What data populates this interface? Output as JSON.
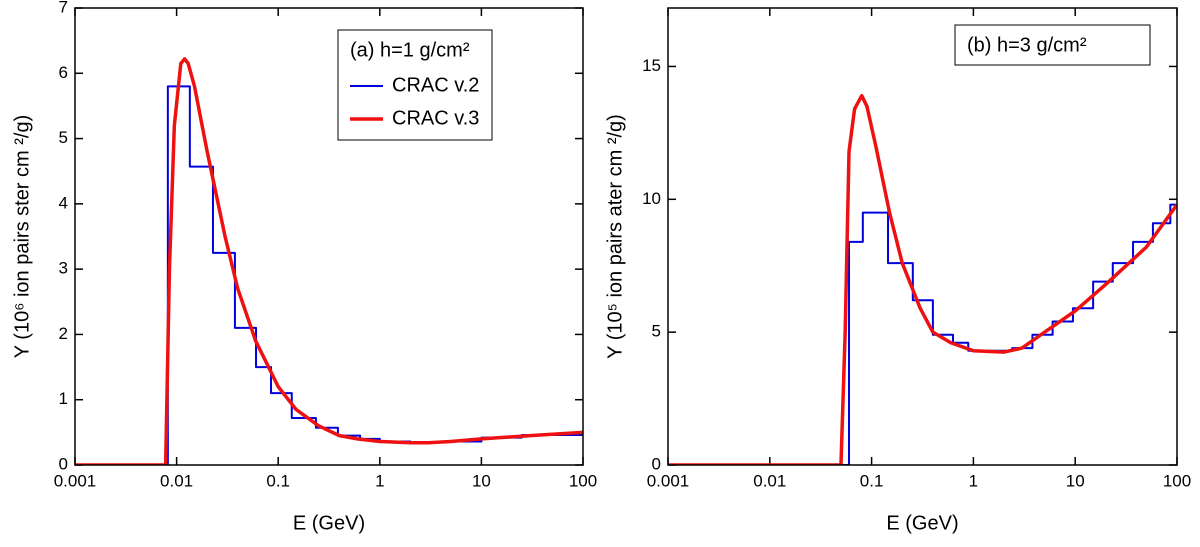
{
  "chart_data": [
    {
      "type": "line",
      "x_log": true,
      "xlabel": "E (GeV)",
      "ylabel": "Y (10⁶ ion pairs ster cm ²/g)",
      "annotation": "(a) h=1 g/cm²",
      "xlim": [
        0.001,
        100
      ],
      "xticks": [
        0.001,
        0.01,
        0.1,
        1,
        10,
        100
      ],
      "ylim": [
        0,
        7
      ],
      "yticks": [
        0,
        1,
        2,
        3,
        4,
        5,
        6,
        7
      ],
      "series": [
        {
          "name": "CRAC v.2",
          "color": "#0000dd",
          "step": "post",
          "x": [
            0.001,
            0.0082,
            0.0135,
            0.0228,
            0.0375,
            0.0605,
            0.085,
            0.136,
            0.235,
            0.387,
            0.64,
            1,
            2,
            4,
            10,
            25,
            100
          ],
          "values": [
            0,
            5.8,
            4.57,
            3.25,
            2.1,
            1.5,
            1.1,
            0.72,
            0.57,
            0.45,
            0.4,
            0.36,
            0.35,
            0.36,
            0.42,
            0.46,
            0.5
          ]
        },
        {
          "name": "CRAC v.3",
          "color": "#ee1111",
          "x": [
            0.001,
            0.0078,
            0.0085,
            0.0095,
            0.011,
            0.012,
            0.013,
            0.015,
            0.02,
            0.03,
            0.04,
            0.06,
            0.1,
            0.15,
            0.25,
            0.4,
            0.6,
            1,
            2,
            3,
            5,
            10,
            30,
            100
          ],
          "values": [
            0,
            0,
            3.0,
            5.2,
            6.15,
            6.22,
            6.15,
            5.8,
            4.8,
            3.5,
            2.7,
            1.9,
            1.2,
            0.85,
            0.6,
            0.45,
            0.4,
            0.36,
            0.34,
            0.34,
            0.36,
            0.4,
            0.45,
            0.5
          ]
        }
      ]
    },
    {
      "type": "line",
      "x_log": true,
      "xlabel": "E (GeV)",
      "ylabel": "Y (10⁵ ion pairs ater cm ²/g)",
      "annotation": "(b) h=3 g/cm²",
      "xlim": [
        0.001,
        100
      ],
      "xticks": [
        0.001,
        0.01,
        0.1,
        1,
        10,
        100
      ],
      "ylim": [
        0,
        17.2
      ],
      "yticks": [
        0,
        5,
        10,
        15
      ],
      "series": [
        {
          "color": "#0000dd",
          "step": "post",
          "x": [
            0.001,
            0.06,
            0.082,
            0.145,
            0.254,
            0.4,
            0.63,
            0.89,
            2.4,
            3.8,
            6,
            9.5,
            15,
            23.4,
            37,
            58,
            86,
            100
          ],
          "values": [
            0,
            8.4,
            9.5,
            7.6,
            6.2,
            4.9,
            4.6,
            4.3,
            4.4,
            4.9,
            5.4,
            5.9,
            6.9,
            7.6,
            8.4,
            9.1,
            9.8,
            9.8
          ]
        },
        {
          "color": "#ee1111",
          "x": [
            0.001,
            0.05,
            0.055,
            0.06,
            0.068,
            0.08,
            0.09,
            0.11,
            0.15,
            0.2,
            0.3,
            0.4,
            0.6,
            1,
            2,
            3,
            5,
            10,
            20,
            50,
            100
          ],
          "values": [
            0,
            0,
            5,
            11.8,
            13.4,
            13.9,
            13.5,
            12,
            9.5,
            7.6,
            5.9,
            5.0,
            4.6,
            4.3,
            4.25,
            4.4,
            5.0,
            5.8,
            6.8,
            8.2,
            9.8
          ]
        }
      ]
    }
  ]
}
